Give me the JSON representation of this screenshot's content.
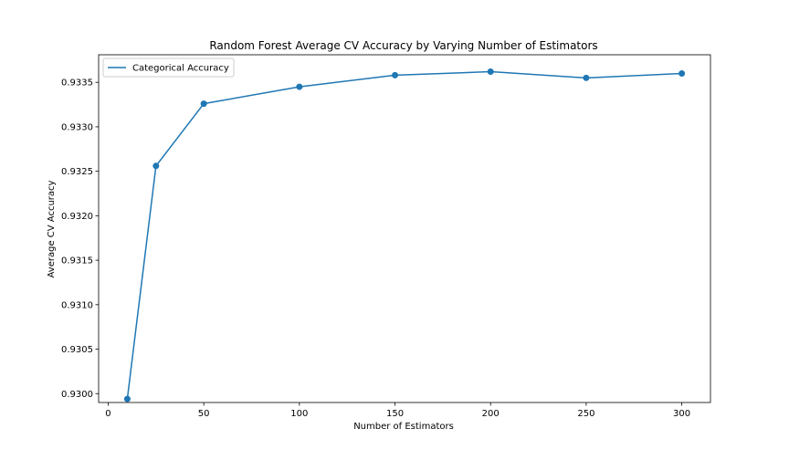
{
  "chart_data": {
    "type": "line",
    "title": "Random Forest Average CV Accuracy by Varying Number of Estimators",
    "xlabel": "Number of Estimators",
    "ylabel": "Average CV Accuracy",
    "xlim": [
      -5,
      315
    ],
    "ylim": [
      0.9299,
      0.93381
    ],
    "x_ticks": [
      0,
      50,
      100,
      150,
      200,
      250,
      300
    ],
    "x_tick_labels": [
      "0",
      "50",
      "100",
      "150",
      "200",
      "250",
      "300"
    ],
    "y_ticks": [
      0.93,
      0.9305,
      0.931,
      0.9315,
      0.932,
      0.9325,
      0.933,
      0.9335
    ],
    "y_tick_labels": [
      "0.9300",
      "0.9305",
      "0.9310",
      "0.9315",
      "0.9320",
      "0.9325",
      "0.9330",
      "0.9335"
    ],
    "grid": false,
    "legend_position": "top-left",
    "series": [
      {
        "name": "Categorical Accuracy",
        "color": "#1f77b4",
        "marker": "circle",
        "x": [
          10,
          25,
          50,
          100,
          150,
          200,
          250,
          300
        ],
        "y": [
          0.92994,
          0.93256,
          0.93326,
          0.93345,
          0.93358,
          0.93362,
          0.93355,
          0.9336
        ]
      }
    ]
  }
}
